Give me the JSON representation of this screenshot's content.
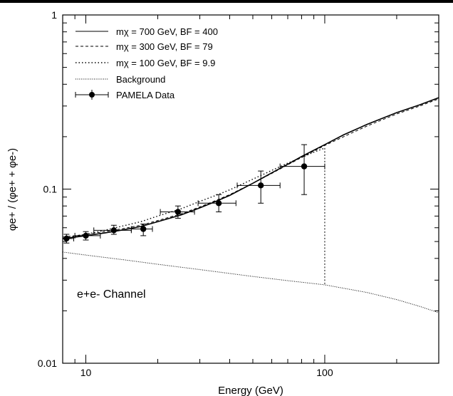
{
  "chart_data": {
    "type": "line",
    "x_scale": "log",
    "y_scale": "log",
    "xlim": [
      8,
      300
    ],
    "ylim": [
      0.01,
      1
    ],
    "xlabel": "Energy (GeV)",
    "ylabel": "φe+ / (φe+ + φe-)",
    "x_ticks": [
      10,
      100
    ],
    "y_ticks": [
      0.01,
      0.1,
      1
    ],
    "x_tick_labels": [
      "10",
      "100"
    ],
    "y_tick_labels": [
      "0.01",
      "0.1",
      "1"
    ],
    "grid": false,
    "legend_position": "top-left",
    "annotation": "e+e- Channel",
    "legend": [
      {
        "key": "solid",
        "label": "mχ = 700 GeV, BF = 400"
      },
      {
        "key": "dashed",
        "label": "mχ = 300 GeV, BF = 79"
      },
      {
        "key": "dotted",
        "label": "mχ = 100 GeV, BF = 9.9"
      },
      {
        "key": "background",
        "label": "Background"
      },
      {
        "key": "data",
        "label": "PAMELA Data"
      }
    ],
    "series": [
      {
        "key": "solid",
        "x": [
          8,
          9,
          10,
          12,
          14,
          17,
          20,
          25,
          30,
          35,
          40,
          50,
          60,
          70,
          80,
          100,
          120,
          150,
          200,
          250,
          300
        ],
        "y": [
          0.052,
          0.053,
          0.054,
          0.056,
          0.058,
          0.061,
          0.065,
          0.071,
          0.078,
          0.085,
          0.092,
          0.108,
          0.124,
          0.139,
          0.154,
          0.18,
          0.205,
          0.235,
          0.275,
          0.305,
          0.335
        ]
      },
      {
        "key": "dashed",
        "x": [
          8,
          9,
          10,
          12,
          14,
          17,
          20,
          25,
          30,
          35,
          40,
          50,
          60,
          70,
          80,
          100,
          120,
          150,
          200,
          250,
          300
        ],
        "y": [
          0.053,
          0.054,
          0.055,
          0.057,
          0.059,
          0.062,
          0.066,
          0.072,
          0.079,
          0.086,
          0.093,
          0.108,
          0.123,
          0.138,
          0.152,
          0.178,
          0.2,
          0.23,
          0.27,
          0.3,
          0.33
        ]
      },
      {
        "key": "dotted",
        "x": [
          8,
          9,
          10,
          12,
          14,
          17,
          20,
          25,
          30,
          35,
          40,
          50,
          60,
          70,
          80,
          90,
          100
        ],
        "y": [
          0.052,
          0.0535,
          0.055,
          0.058,
          0.061,
          0.065,
          0.07,
          0.077,
          0.085,
          0.092,
          0.099,
          0.114,
          0.128,
          0.141,
          0.152,
          0.163,
          0.172
        ]
      },
      {
        "key": "dotted-drop",
        "x": [
          100,
          100
        ],
        "y": [
          0.172,
          0.0285
        ]
      },
      {
        "key": "background",
        "x": [
          8,
          10,
          15,
          20,
          30,
          50,
          70,
          100,
          150,
          200,
          250,
          300
        ],
        "y": [
          0.0435,
          0.0418,
          0.039,
          0.037,
          0.0345,
          0.0315,
          0.0298,
          0.0282,
          0.0255,
          0.0232,
          0.0212,
          0.0195
        ]
      }
    ],
    "data_points": [
      {
        "x": 8.3,
        "y": 0.052,
        "xlo": 8.0,
        "xhi": 8.9,
        "ylo": 0.049,
        "yhi": 0.055
      },
      {
        "x": 10.0,
        "y": 0.054,
        "xlo": 9.0,
        "xhi": 11.5,
        "ylo": 0.051,
        "yhi": 0.057
      },
      {
        "x": 13.1,
        "y": 0.058,
        "xlo": 10.8,
        "xhi": 15.5,
        "ylo": 0.055,
        "yhi": 0.062
      },
      {
        "x": 17.4,
        "y": 0.059,
        "xlo": 15.5,
        "xhi": 19.0,
        "ylo": 0.054,
        "yhi": 0.063
      },
      {
        "x": 24.3,
        "y": 0.074,
        "xlo": 20.5,
        "xhi": 28.5,
        "ylo": 0.068,
        "yhi": 0.08
      },
      {
        "x": 36.0,
        "y": 0.083,
        "xlo": 29.5,
        "xhi": 42.5,
        "ylo": 0.074,
        "yhi": 0.093
      },
      {
        "x": 54.0,
        "y": 0.105,
        "xlo": 43.0,
        "xhi": 65.0,
        "ylo": 0.083,
        "yhi": 0.127
      },
      {
        "x": 82.0,
        "y": 0.135,
        "xlo": 65.0,
        "xhi": 100.0,
        "ylo": 0.093,
        "yhi": 0.18
      }
    ]
  }
}
